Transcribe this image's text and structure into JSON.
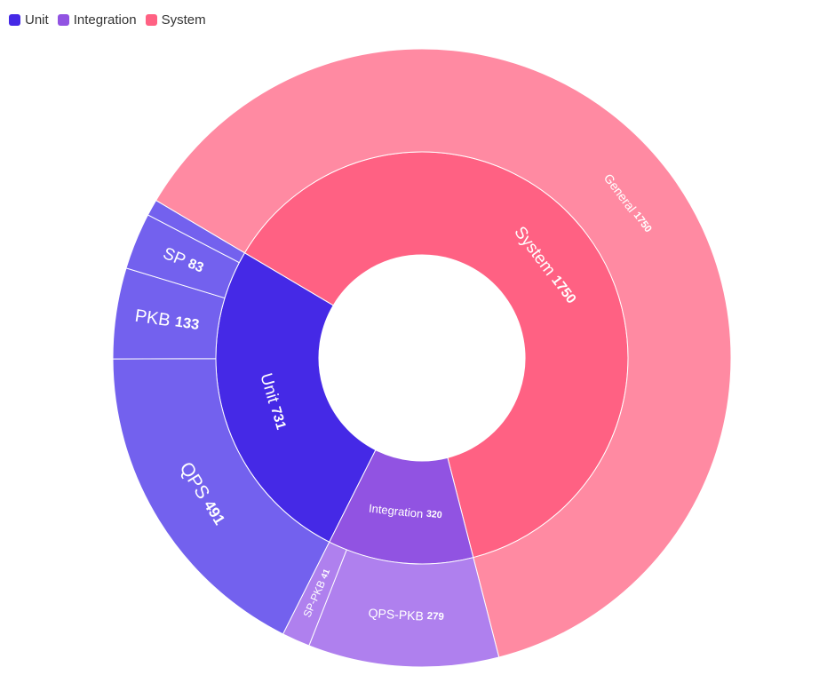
{
  "chart_data": {
    "type": "sunburst",
    "legend": {
      "placement": "top-left",
      "items": [
        {
          "label": "Unit",
          "color": "#4529E6"
        },
        {
          "label": "Integration",
          "color": "#9153E2"
        },
        {
          "label": "System",
          "color": "#FF6183"
        }
      ]
    },
    "inner": [
      {
        "name": "Unit",
        "value": 731,
        "color": "#4529E6"
      },
      {
        "name": "System",
        "value": 1750,
        "color": "#FF6183"
      },
      {
        "name": "Integration",
        "value": 320,
        "color": "#9153E2"
      }
    ],
    "outer": [
      {
        "name": "QPS",
        "value": 491,
        "parent": "Unit",
        "color": "#7361EE",
        "labelled": true
      },
      {
        "name": "PKB",
        "value": 133,
        "parent": "Unit",
        "color": "#7361EE",
        "labelled": true
      },
      {
        "name": "SP",
        "value": 83,
        "parent": "Unit",
        "color": "#7361EE",
        "labelled": true
      },
      {
        "name": "",
        "value": 24,
        "parent": "Unit",
        "color": "#7361EE",
        "labelled": false
      },
      {
        "name": "General",
        "value": 1750,
        "parent": "System",
        "color": "#FF8AA2",
        "labelled": true
      },
      {
        "name": "QPS-PKB",
        "value": 279,
        "parent": "Integration",
        "color": "#AF80EE",
        "labelled": true
      },
      {
        "name": "SP-PKB",
        "value": 41,
        "parent": "Integration",
        "color": "#AF80EE",
        "labelled": true
      }
    ]
  }
}
